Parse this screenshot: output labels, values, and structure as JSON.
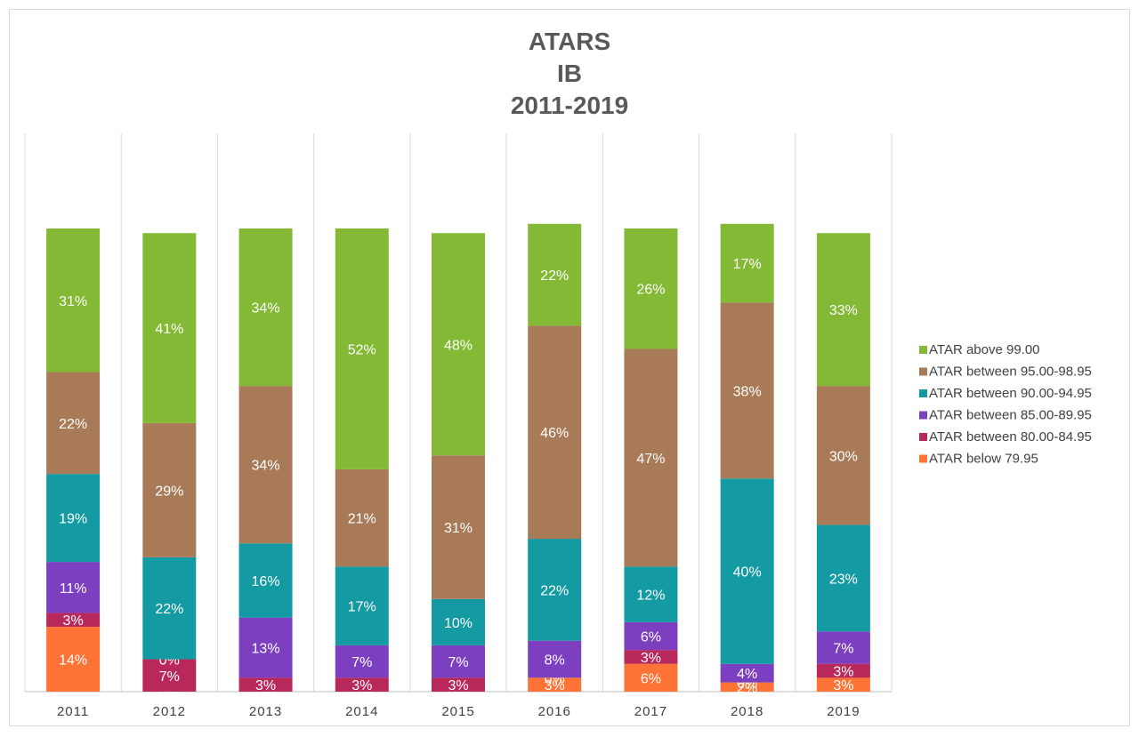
{
  "chart_data": {
    "type": "bar",
    "stacked": true,
    "title": [
      "ATARS",
      "IB",
      "2011-2019"
    ],
    "categories": [
      "2011",
      "2012",
      "2013",
      "2014",
      "2015",
      "2016",
      "2017",
      "2018",
      "2019"
    ],
    "series": [
      {
        "name": "ATAR below 79.95",
        "color": "#ff7337",
        "values": [
          14,
          0,
          0,
          0,
          0,
          3,
          6,
          2,
          3
        ],
        "labels": [
          "14%",
          "0%",
          "0%",
          "0%",
          "0%",
          "3%",
          "6%",
          "2%",
          "3%"
        ]
      },
      {
        "name": "ATAR between 80.00-84.95",
        "color": "#b8285a",
        "values": [
          3,
          7,
          3,
          3,
          3,
          0,
          3,
          0,
          3
        ],
        "labels": [
          "3%",
          "7%",
          "3%",
          "3%",
          "3%",
          "0%",
          "3%",
          "0%",
          "3%"
        ]
      },
      {
        "name": "ATAR between 85.00-89.95",
        "color": "#7b3fbf",
        "values": [
          11,
          0,
          13,
          7,
          7,
          8,
          6,
          4,
          7
        ],
        "labels": [
          "11%",
          "0%",
          "13%",
          "7%",
          "7%",
          "8%",
          "6%",
          "4%",
          "7%"
        ]
      },
      {
        "name": "ATAR between 90.00-94.95",
        "color": "#149aa2",
        "values": [
          19,
          22,
          16,
          17,
          10,
          22,
          12,
          40,
          23
        ],
        "labels": [
          "19%",
          "22%",
          "16%",
          "17%",
          "10%",
          "22%",
          "12%",
          "40%",
          "23%"
        ]
      },
      {
        "name": "ATAR between 95.00-98.95",
        "color": "#a97a58",
        "values": [
          22,
          29,
          34,
          21,
          31,
          46,
          47,
          38,
          30
        ],
        "labels": [
          "22%",
          "29%",
          "34%",
          "21%",
          "31%",
          "46%",
          "47%",
          "38%",
          "30%"
        ]
      },
      {
        "name": "ATAR above 99.00",
        "color": "#83b935",
        "values": [
          31,
          41,
          34,
          52,
          48,
          22,
          26,
          17,
          33
        ],
        "labels": [
          "31%",
          "41%",
          "34%",
          "52%",
          "48%",
          "22%",
          "26%",
          "17%",
          "33%"
        ]
      }
    ],
    "ylim": [
      0,
      100
    ],
    "grid": "vertical",
    "legend": "right",
    "legend_order": [
      "ATAR above 99.00",
      "ATAR between 95.00-98.95",
      "ATAR between 90.00-94.95",
      "ATAR between 85.00-89.95",
      "ATAR between 80.00-84.95",
      "ATAR below 79.95"
    ]
  }
}
